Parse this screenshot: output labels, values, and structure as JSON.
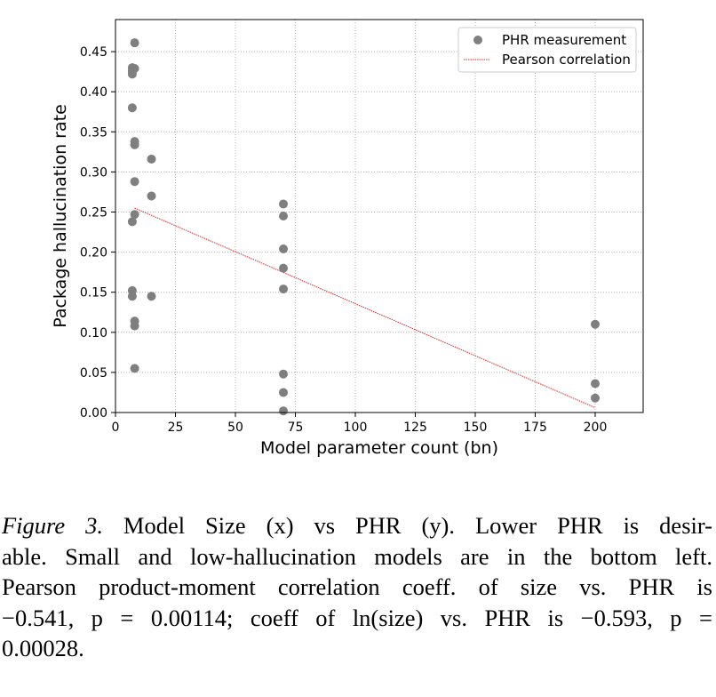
{
  "chart_data": {
    "type": "scatter",
    "xlabel": "Model parameter count (bn)",
    "ylabel": "Package hallucination rate",
    "xlim": [
      0,
      220
    ],
    "ylim": [
      0,
      0.49
    ],
    "x_ticks": [
      "0",
      "25",
      "50",
      "75",
      "100",
      "125",
      "150",
      "175",
      "200"
    ],
    "y_ticks": [
      "0.00",
      "0.05",
      "0.10",
      "0.15",
      "0.20",
      "0.25",
      "0.30",
      "0.35",
      "0.40",
      "0.45"
    ],
    "grid": true,
    "legend_position": "top-right",
    "series": [
      {
        "name": "PHR measurement",
        "kind": "points",
        "color": "#7f7f7f",
        "x": [
          8,
          7,
          8,
          7,
          7,
          7,
          8,
          8,
          15,
          8,
          15,
          8,
          7,
          7,
          7,
          8,
          15,
          8,
          8,
          8,
          70,
          70,
          70,
          70,
          70,
          70,
          70,
          70,
          200,
          200,
          200
        ],
        "y": [
          0.461,
          0.43,
          0.429,
          0.426,
          0.422,
          0.38,
          0.338,
          0.334,
          0.316,
          0.288,
          0.27,
          0.247,
          0.238,
          0.152,
          0.145,
          0.114,
          0.145,
          0.108,
          0.055,
          0.334,
          0.26,
          0.245,
          0.204,
          0.18,
          0.154,
          0.048,
          0.025,
          0.002,
          0.11,
          0.036,
          0.018
        ]
      },
      {
        "name": "Pearson correlation",
        "kind": "line",
        "color": "#d62728",
        "x": [
          8,
          200
        ],
        "y": [
          0.255,
          0.006
        ]
      }
    ]
  },
  "caption": {
    "label": "Figure 3.",
    "line1": "Model Size (x) vs PHR (y).  Lower PHR is desir-",
    "line2": "able.  Small and low-hallucination models are in the bottom left.",
    "line3": "Pearson product-moment correlation coeff.  of size vs. PHR is",
    "line4": "−0.541, p = 0.00114; coeff of ln(size) vs. PHR is −0.593, p =",
    "line5": "0.00028."
  }
}
